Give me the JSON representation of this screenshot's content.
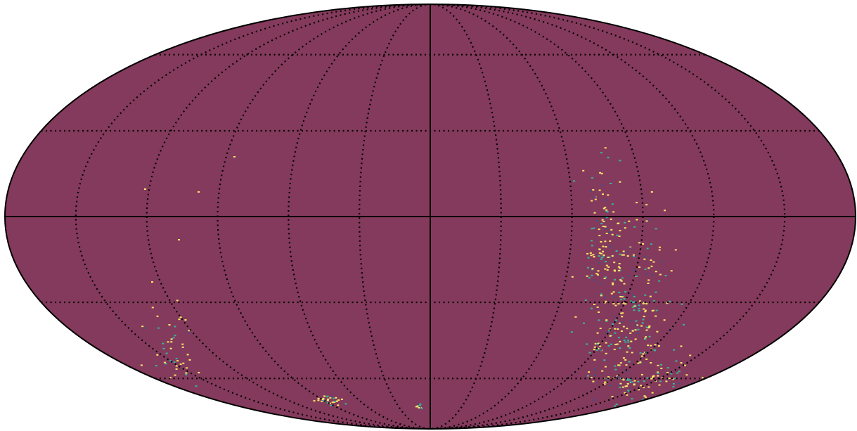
{
  "map": {
    "projection": "mollweide",
    "fill": "#843a5c",
    "grid": true,
    "speckle_colors": [
      "#fde767",
      "#35b69f",
      "#3b528b"
    ]
  }
}
